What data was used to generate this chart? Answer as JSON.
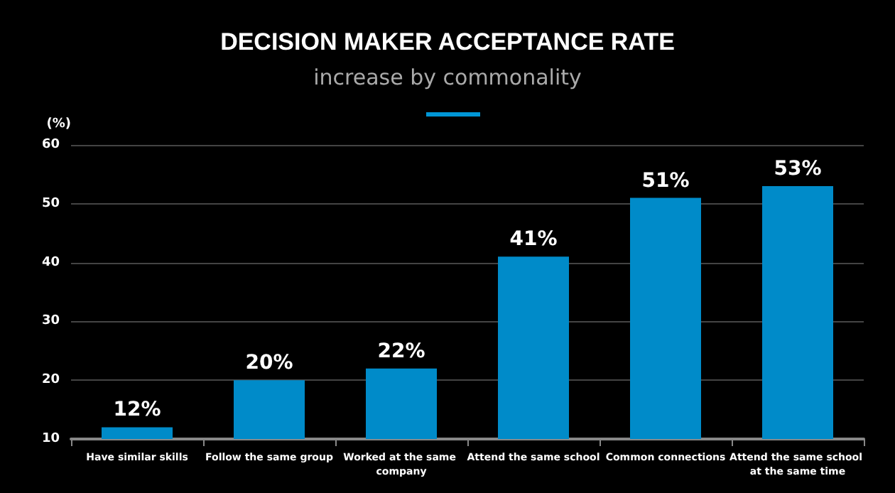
{
  "chart_data": {
    "type": "bar",
    "title": "DECISION MAKER ACCEPTANCE RATE",
    "subtitle": "increase by commonality",
    "ylabel": "(%)",
    "categories": [
      "Have similar skills",
      "Follow the same group",
      "Worked at the same company",
      "Attend the same school",
      "Common connections",
      "Attend the same school at the same time"
    ],
    "values": [
      12,
      20,
      22,
      41,
      51,
      53
    ],
    "value_labels": [
      "12%",
      "20%",
      "22%",
      "41%",
      "51%",
      "53%"
    ],
    "color": "#008bc9",
    "ylim": [
      10,
      60
    ],
    "yticks": [
      10,
      20,
      30,
      40,
      50,
      60
    ],
    "grid": "y"
  }
}
